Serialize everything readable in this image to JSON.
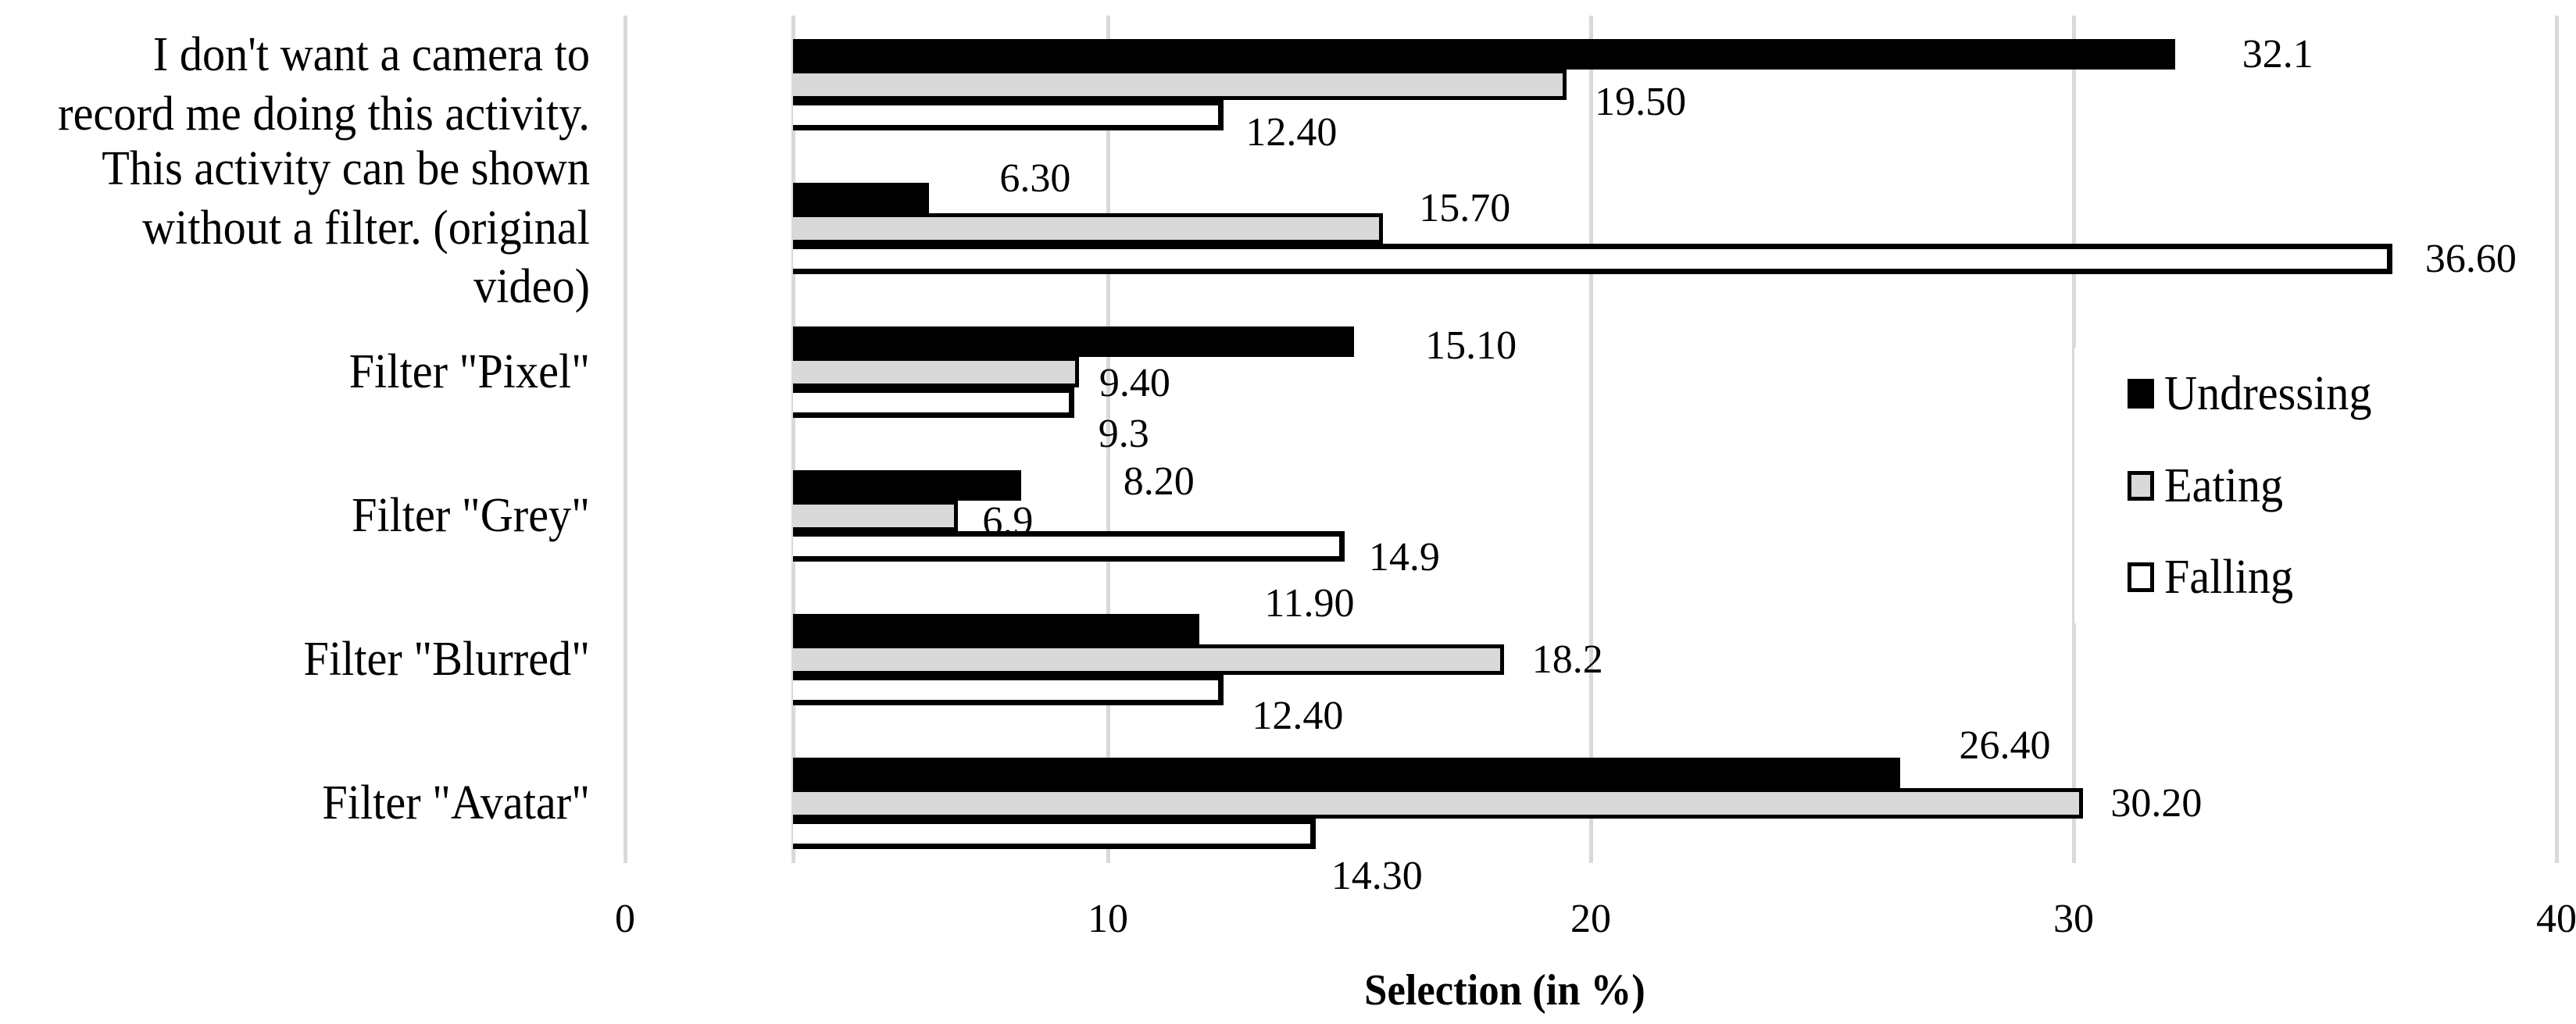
{
  "figure": {
    "background": "#ffffff",
    "text_color": "#000000",
    "gridline_color": "#d9d9d9"
  },
  "chart_data": {
    "type": "bar",
    "orientation": "horizontal",
    "title": "",
    "xlabel": "Selection (in %)",
    "ylabel": "",
    "xlim": [
      0,
      40
    ],
    "grid": true,
    "legend_position": "center-right",
    "x_ticks": [
      {
        "label": "0",
        "value": 0
      },
      {
        "label": "10",
        "value": 10
      },
      {
        "label": "20",
        "value": 20
      },
      {
        "label": "30",
        "value": 30
      },
      {
        "label": "40",
        "value": 40
      }
    ],
    "categories": [
      "I don't want a camera to\nrecord me doing this activity.",
      "This activity can be shown\nwithout a filter. (original video)",
      "Filter \"Pixel\"",
      "Filter \"Grey\"",
      "Filter \"Blurred\"",
      "Filter \"Avatar\""
    ],
    "series": [
      {
        "name": "Undressing",
        "fill": "#000000",
        "border": "#000000",
        "values": [
          32.1,
          6.3,
          15.1,
          8.2,
          11.9,
          26.4
        ],
        "value_labels": [
          "32.1",
          "6.30",
          "15.10",
          "8.20",
          "11.90",
          "26.40"
        ]
      },
      {
        "name": "Eating",
        "fill": "#d9d9d9",
        "border": "#000000",
        "values": [
          19.5,
          15.7,
          9.4,
          6.9,
          18.2,
          30.2
        ],
        "value_labels": [
          "19.50",
          "15.70",
          "9.40",
          "6.9",
          "18.2",
          "30.20"
        ]
      },
      {
        "name": "Falling",
        "fill": "#ffffff",
        "border": "#000000",
        "values": [
          12.4,
          36.6,
          9.3,
          14.9,
          12.4,
          14.3
        ],
        "value_labels": [
          "12.40",
          "36.60",
          "9.3",
          "14.9",
          "12.40",
          "14.30"
        ]
      }
    ],
    "layout_hints": {
      "bar_base_offset_units": 3.46,
      "value_label_offsets": [
        [
          [
            50,
            0
          ],
          [
            54,
            -25
          ],
          [
            55,
            5
          ],
          [
            95,
            -5
          ],
          [
            47,
            -33
          ],
          [
            40,
            -35
          ]
        ],
        [
          [
            0,
            22
          ],
          [
            10,
            -26
          ],
          [
            -10,
            14
          ],
          [
            -5,
            7
          ],
          [
            0,
            0
          ],
          [
            -1,
            0
          ]
        ],
        [
          [
            -8,
            22
          ],
          [
            6,
            0
          ],
          [
            -5,
            40
          ],
          [
            -5,
            14
          ],
          [
            0,
            33
          ],
          [
            -16,
            54
          ]
        ]
      ]
    }
  }
}
